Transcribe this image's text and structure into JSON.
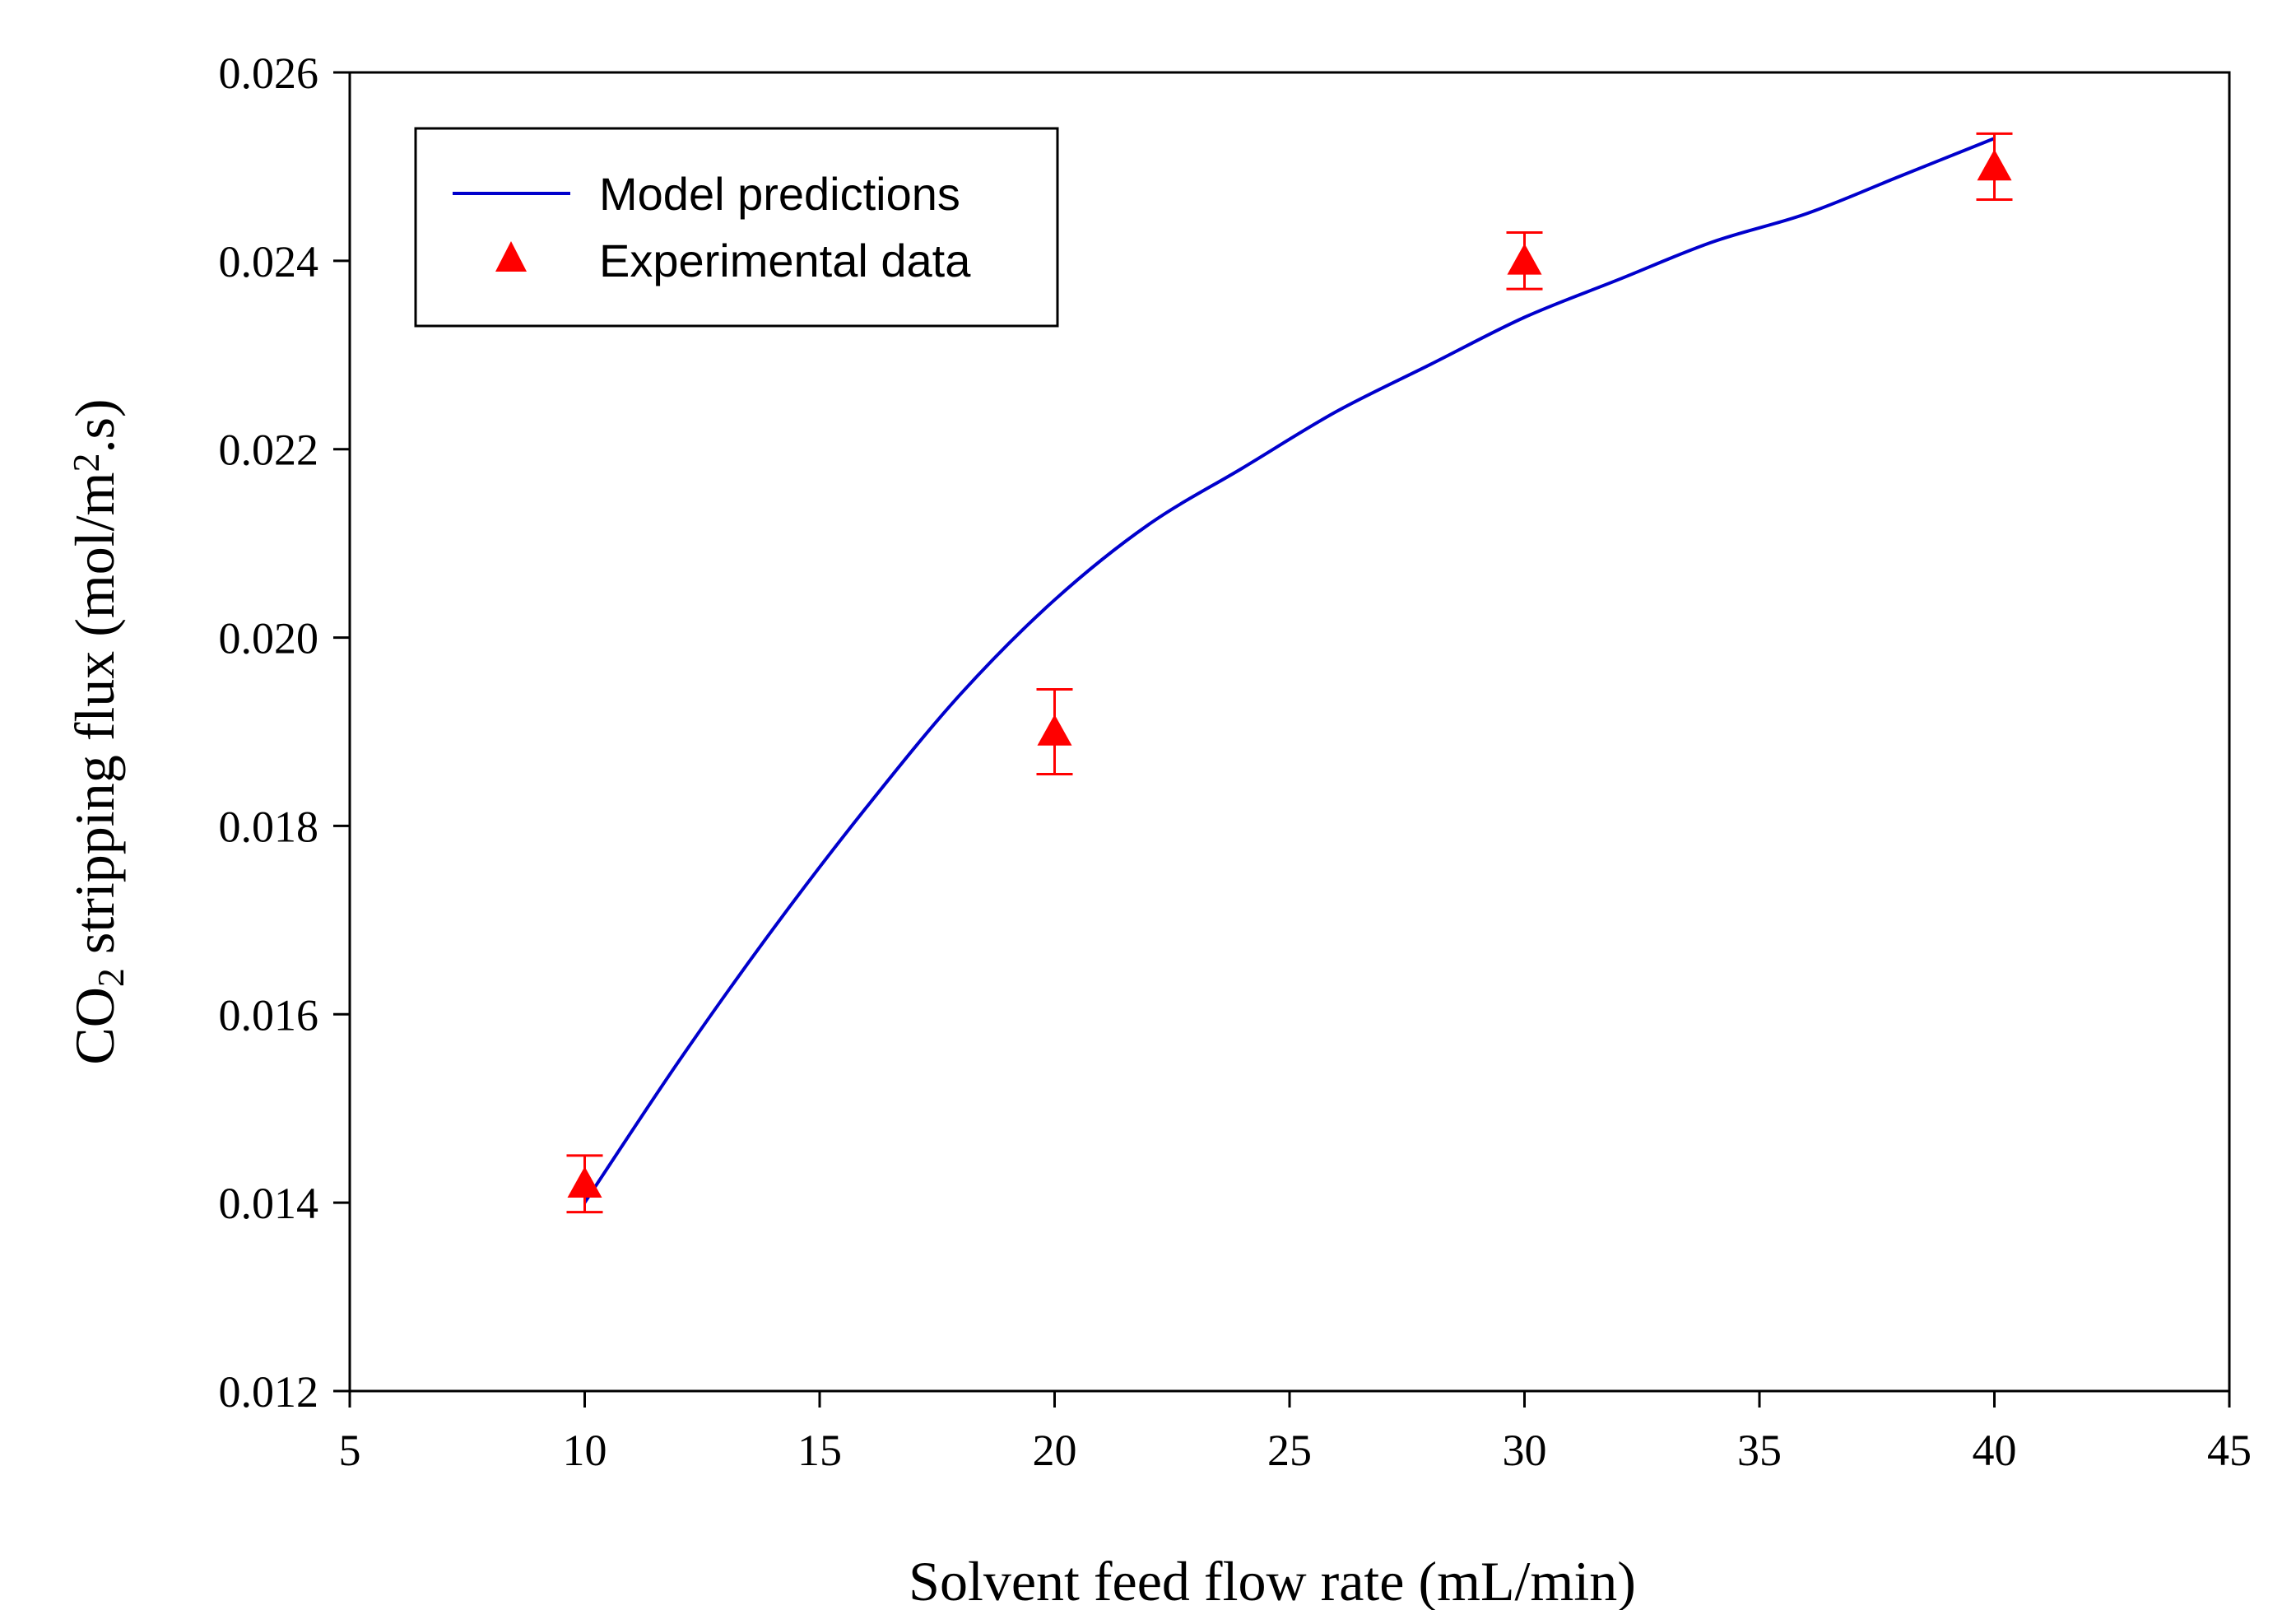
{
  "chart_data": {
    "type": "line",
    "title": "",
    "xlabel": "Solvent feed flow rate (mL/min)",
    "ylabel": {
      "prefix": "CO",
      "sub": "2",
      "middle": " stripping flux (mol/m",
      "sup": "2",
      "suffix": ".s)"
    },
    "xlim": [
      5,
      45
    ],
    "ylim": [
      0.012,
      0.026
    ],
    "xticks": [
      5,
      10,
      15,
      20,
      25,
      30,
      35,
      40,
      45
    ],
    "xtick_labels": [
      "5",
      "10",
      "15",
      "20",
      "25",
      "30",
      "35",
      "40",
      "45"
    ],
    "yticks": [
      0.012,
      0.014,
      0.016,
      0.018,
      0.02,
      0.022,
      0.024,
      0.026
    ],
    "ytick_labels": [
      "0.012",
      "0.014",
      "0.016",
      "0.018",
      "0.020",
      "0.022",
      "0.024",
      "0.026"
    ],
    "grid": false,
    "legend_position": "top-left",
    "series": [
      {
        "name": "Model predictions",
        "kind": "line",
        "color": "#0000cc",
        "x": [
          10,
          12,
          14,
          16,
          18,
          20,
          22,
          24,
          26,
          28,
          30,
          32,
          34,
          36,
          38,
          40
        ],
        "y": [
          0.014,
          0.0155,
          0.0169,
          0.0182,
          0.0194,
          0.0204,
          0.0212,
          0.0218,
          0.0224,
          0.0229,
          0.0234,
          0.0238,
          0.0242,
          0.0245,
          0.0249,
          0.0253
        ]
      },
      {
        "name": "Experimental data",
        "kind": "scatter",
        "marker": "triangle",
        "color": "#ff0000",
        "x": [
          10,
          20,
          30,
          40
        ],
        "y": [
          0.0142,
          0.019,
          0.024,
          0.025
        ],
        "yerr": [
          0.0003,
          0.00045,
          0.0003,
          0.00035
        ]
      }
    ]
  }
}
